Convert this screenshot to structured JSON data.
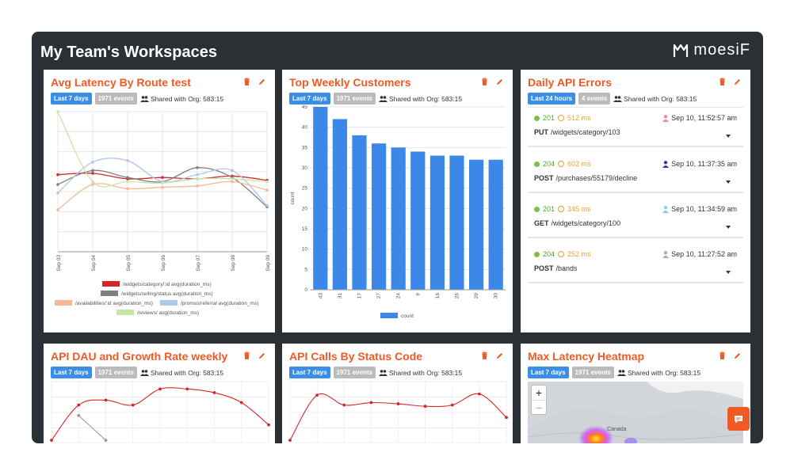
{
  "workspace": {
    "title": "My Team's Workspaces",
    "brand": "moesiF"
  },
  "shared_label": "Shared with Org: 583:15",
  "cards": {
    "latency": {
      "title": "Avg Latency By Route test",
      "range": "Last 7 days",
      "events": "1971 events"
    },
    "customers": {
      "title": "Top Weekly Customers",
      "range": "Last 7 days",
      "events": "1971 events"
    },
    "errors": {
      "title": "Daily API Errors",
      "range": "Last 24 hours",
      "events": "4 events"
    },
    "dau": {
      "title": "API DAU and Growth Rate weekly",
      "range": "Last 7 days",
      "events": "1971 events"
    },
    "status": {
      "title": "API Calls By Status Code",
      "range": "Last 7 days",
      "events": "1971 events"
    },
    "heatmap": {
      "title": "Max Latency Heatmap",
      "range": "Last 7 days",
      "events": "1971 events",
      "map_label": "Canada"
    }
  },
  "errors": [
    {
      "status": "201",
      "ms": "512 ms",
      "time": "Sep 10, 11:52:57 am",
      "method": "PUT",
      "path": "/widgets/category/103",
      "user_color": "#e88aa0"
    },
    {
      "status": "204",
      "ms": "602 ms",
      "time": "Sep 10, 11:37:35 am",
      "method": "POST",
      "path": "/purchases/55179/decline",
      "user_color": "#2a3f8f"
    },
    {
      "status": "201",
      "ms": "345 ms",
      "time": "Sep 10, 11:34:59 am",
      "method": "GET",
      "path": "/widgets/category/100",
      "user_color": "#8ccbe0"
    },
    {
      "status": "204",
      "ms": "252 ms",
      "time": "Sep 10, 11:27:52 am",
      "method": "POST",
      "path": "/bands",
      "user_color": "#9ab0c8"
    }
  ],
  "chart_data": [
    {
      "type": "line",
      "title": "Avg Latency By Route test",
      "categories": [
        "Sep 03",
        "Sep 04",
        "Sep 05",
        "Sep 06",
        "Sep 07",
        "Sep 08",
        "Sep 09"
      ],
      "grid": true,
      "legend_position": "bottom",
      "series": [
        {
          "name": "/widgets/category/:id avg(duration_ms)",
          "color": "#d62728",
          "values": [
            0.55,
            0.56,
            0.52,
            0.53,
            0.52,
            0.54,
            0.51
          ]
        },
        {
          "name": "/widgets/selling/status avg(duration_ms)",
          "color": "#7f7f7f",
          "values": [
            0.48,
            0.58,
            0.53,
            0.5,
            0.6,
            0.53,
            0.32
          ]
        },
        {
          "name": "/availabilities/:id avg(duration_ms)",
          "color": "#f5b895",
          "values": [
            0.3,
            0.48,
            0.45,
            0.46,
            0.47,
            0.5,
            0.44
          ]
        },
        {
          "name": "/promos/referral avg(duration_ms)",
          "color": "#aec7e8",
          "values": [
            0.42,
            0.64,
            0.65,
            0.5,
            0.55,
            0.58,
            0.33
          ]
        },
        {
          "name": "/reviews/ avg(duration_ms)",
          "color": "#c5e8a8",
          "values": [
            1.0,
            0.5,
            0.5,
            0.49,
            0.52,
            0.52,
            0.5
          ]
        }
      ]
    },
    {
      "type": "bar",
      "title": "Top Weekly Customers",
      "categories": [
        "43",
        "31",
        "17",
        "27",
        "24",
        "9",
        "16",
        "26",
        "29",
        "30"
      ],
      "series": [
        {
          "name": "count",
          "color": "#3b88e8",
          "values": [
            45,
            42,
            38,
            36,
            35,
            34,
            33,
            33,
            32,
            32
          ]
        }
      ],
      "ylabel": "count",
      "ylim": [
        0,
        45
      ],
      "yticks": [
        0,
        5,
        10,
        15,
        20,
        25,
        30,
        35,
        40,
        45
      ],
      "grid": true,
      "legend_position": "bottom"
    },
    {
      "type": "line",
      "title": "API DAU and Growth Rate weekly",
      "series": [
        {
          "color": "#d62728",
          "values": [
            0.05,
            0.62,
            0.7,
            0.62,
            0.88,
            0.88,
            0.82,
            0.66,
            0.3
          ]
        },
        {
          "color": "#999999",
          "values": [
            null,
            0.45,
            0.05,
            null,
            null,
            null,
            null,
            null,
            null
          ]
        }
      ],
      "grid": true
    },
    {
      "type": "line",
      "title": "API Calls By Status Code",
      "series": [
        {
          "color": "#d62728",
          "values": [
            0.05,
            0.78,
            0.62,
            0.66,
            0.64,
            0.6,
            0.62,
            0.8,
            0.42
          ]
        }
      ],
      "grid": true
    }
  ]
}
